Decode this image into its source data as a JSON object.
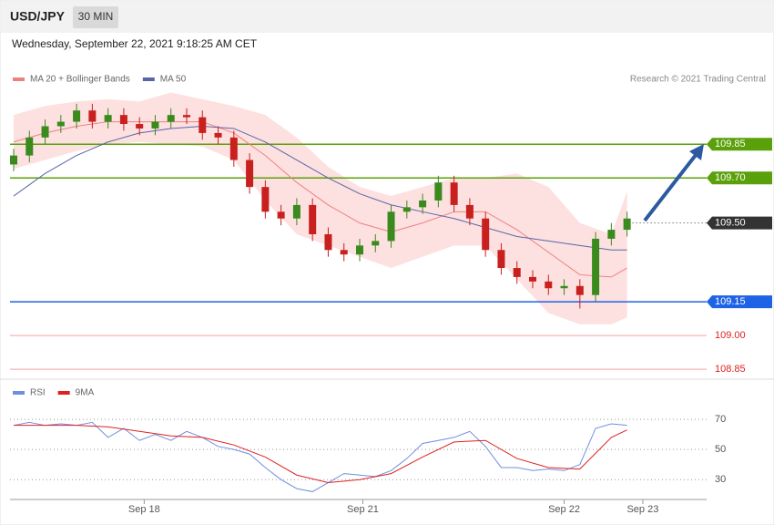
{
  "header": {
    "symbol": "USD/JPY",
    "interval": "30 MIN",
    "timestamp": "Wednesday, September 22, 2021 9:18:25 AM CET"
  },
  "chart_data": [
    {
      "type": "candlestick",
      "credit": "Research © 2021 Trading Central",
      "xlim": [
        0,
        44
      ],
      "ylim": [
        108.81,
        110.09
      ],
      "xticks": [
        {
          "value": 8.3,
          "label": "Sep 18"
        },
        {
          "value": 22.2,
          "label": "Sep 21"
        },
        {
          "value": 35,
          "label": "Sep 22"
        },
        {
          "value": 40,
          "label": "Sep 23"
        }
      ],
      "up_color": "#3a8a1e",
      "down_color": "#c8201e",
      "open": [
        109.76,
        109.8,
        109.88,
        109.93,
        109.95,
        110.0,
        109.95,
        109.98,
        109.94,
        109.92,
        109.95,
        109.98,
        109.97,
        109.9,
        109.88,
        109.78,
        109.66,
        109.55,
        109.52,
        109.58,
        109.45,
        109.38,
        109.36,
        109.4,
        109.42,
        109.55,
        109.57,
        109.6,
        109.68,
        109.58,
        109.52,
        109.38,
        109.3,
        109.26,
        109.24,
        109.21,
        109.22,
        109.18,
        109.43,
        109.47
      ],
      "high": [
        109.83,
        109.91,
        109.96,
        109.98,
        110.03,
        110.03,
        110.01,
        110.01,
        109.97,
        109.98,
        110.01,
        110.01,
        110.0,
        109.93,
        109.91,
        109.81,
        109.69,
        109.58,
        109.61,
        109.61,
        109.48,
        109.41,
        109.43,
        109.45,
        109.58,
        109.6,
        109.63,
        109.71,
        109.71,
        109.61,
        109.55,
        109.41,
        109.33,
        109.29,
        109.27,
        109.25,
        109.25,
        109.46,
        109.5,
        109.55
      ],
      "low": [
        109.73,
        109.77,
        109.85,
        109.9,
        109.92,
        109.92,
        109.92,
        109.91,
        109.89,
        109.89,
        109.92,
        109.94,
        109.87,
        109.85,
        109.75,
        109.63,
        109.52,
        109.49,
        109.49,
        109.42,
        109.35,
        109.33,
        109.33,
        109.37,
        109.39,
        109.52,
        109.54,
        109.57,
        109.55,
        109.49,
        109.35,
        109.27,
        109.23,
        109.21,
        109.18,
        109.18,
        109.12,
        109.15,
        109.4,
        109.44
      ],
      "close": [
        109.8,
        109.88,
        109.93,
        109.95,
        110.0,
        109.95,
        109.98,
        109.94,
        109.92,
        109.95,
        109.98,
        109.97,
        109.9,
        109.88,
        109.78,
        109.66,
        109.55,
        109.52,
        109.58,
        109.45,
        109.38,
        109.36,
        109.4,
        109.42,
        109.55,
        109.57,
        109.6,
        109.68,
        109.58,
        109.52,
        109.38,
        109.3,
        109.26,
        109.24,
        109.21,
        109.22,
        109.18,
        109.43,
        109.47,
        109.52
      ],
      "bands": {
        "color": "#fde0e0",
        "x": [
          0,
          2,
          4,
          6,
          8,
          10,
          12,
          14,
          16,
          18,
          20,
          22,
          24,
          26,
          28,
          30,
          32,
          34,
          36,
          38,
          39
        ],
        "upper": [
          109.98,
          110.02,
          110.04,
          110.05,
          110.04,
          110.08,
          110.05,
          110.02,
          109.98,
          109.88,
          109.75,
          109.66,
          109.62,
          109.66,
          109.7,
          109.7,
          109.72,
          109.66,
          109.5,
          109.45,
          109.64
        ],
        "lower": [
          109.74,
          109.78,
          109.82,
          109.85,
          109.86,
          109.85,
          109.84,
          109.78,
          109.6,
          109.45,
          109.4,
          109.35,
          109.3,
          109.35,
          109.4,
          109.4,
          109.25,
          109.1,
          109.05,
          109.05,
          109.08
        ]
      },
      "series": [
        {
          "name": "MA 20 + Bollinger Bands",
          "color": "#f08080",
          "x": [
            0,
            2,
            4,
            6,
            8,
            10,
            12,
            14,
            16,
            18,
            20,
            22,
            24,
            26,
            28,
            30,
            32,
            34,
            36,
            38,
            39
          ],
          "values": [
            109.86,
            109.9,
            109.93,
            109.95,
            109.95,
            109.95,
            109.95,
            109.9,
            109.8,
            109.68,
            109.58,
            109.5,
            109.46,
            109.5,
            109.55,
            109.55,
            109.47,
            109.37,
            109.27,
            109.26,
            109.3
          ]
        },
        {
          "name": "MA 50",
          "color": "#5866a8",
          "x": [
            0,
            2,
            4,
            6,
            8,
            10,
            12,
            14,
            16,
            18,
            20,
            22,
            24,
            26,
            28,
            30,
            32,
            34,
            36,
            38,
            39
          ],
          "values": [
            109.62,
            109.72,
            109.8,
            109.86,
            109.9,
            109.92,
            109.93,
            109.92,
            109.86,
            109.78,
            109.7,
            109.63,
            109.58,
            109.55,
            109.52,
            109.48,
            109.44,
            109.42,
            109.4,
            109.38,
            109.38
          ]
        }
      ],
      "levels": [
        {
          "value": 109.85,
          "label": "109.85",
          "color": "#5aa00a",
          "kind": "tag",
          "line": "solid"
        },
        {
          "value": 109.7,
          "label": "109.70",
          "color": "#5aa00a",
          "kind": "tag",
          "line": "solid"
        },
        {
          "value": 109.5,
          "label": "109.50",
          "color": "#333333",
          "kind": "tag",
          "line": "dotted"
        },
        {
          "value": 109.15,
          "label": "109.15",
          "color": "#1e62e6",
          "kind": "tag",
          "line": "solid"
        },
        {
          "value": 109,
          "label": "109.00",
          "color": "#e02020",
          "kind": "text",
          "line": "solid"
        },
        {
          "value": 108.85,
          "label": "108.85",
          "color": "#e02020",
          "kind": "text",
          "line": "solid"
        }
      ]
    },
    {
      "type": "line",
      "xlim": [
        0,
        44
      ],
      "ylim": [
        15,
        90
      ],
      "yticks": [
        30,
        50,
        70
      ],
      "series": [
        {
          "name": "RSI",
          "color": "#6e8fe0",
          "x": [
            0,
            1,
            2,
            3,
            4,
            5,
            6,
            7,
            8,
            9,
            10,
            11,
            12,
            13,
            14,
            15,
            16,
            17,
            18,
            19,
            20,
            21,
            22,
            23,
            24,
            25,
            26,
            27,
            28,
            29,
            30,
            31,
            32,
            33,
            34,
            35,
            36,
            37,
            38,
            39
          ],
          "values": [
            66,
            68,
            66,
            67,
            66,
            68,
            58,
            64,
            56,
            60,
            56,
            62,
            58,
            52,
            50,
            47,
            38,
            30,
            24,
            22,
            28,
            34,
            33,
            32,
            36,
            44,
            54,
            56,
            58,
            62,
            52,
            38,
            38,
            36,
            37,
            36,
            40,
            64,
            67,
            66
          ]
        },
        {
          "name": "9MA",
          "color": "#e02020",
          "x": [
            0,
            2,
            4,
            6,
            8,
            10,
            12,
            14,
            16,
            18,
            20,
            22,
            24,
            26,
            28,
            30,
            32,
            34,
            36,
            38,
            39
          ],
          "values": [
            66,
            66,
            66,
            65,
            62,
            59,
            58,
            53,
            45,
            33,
            28,
            30,
            34,
            45,
            55,
            56,
            44,
            38,
            37,
            58,
            63
          ]
        }
      ]
    }
  ]
}
